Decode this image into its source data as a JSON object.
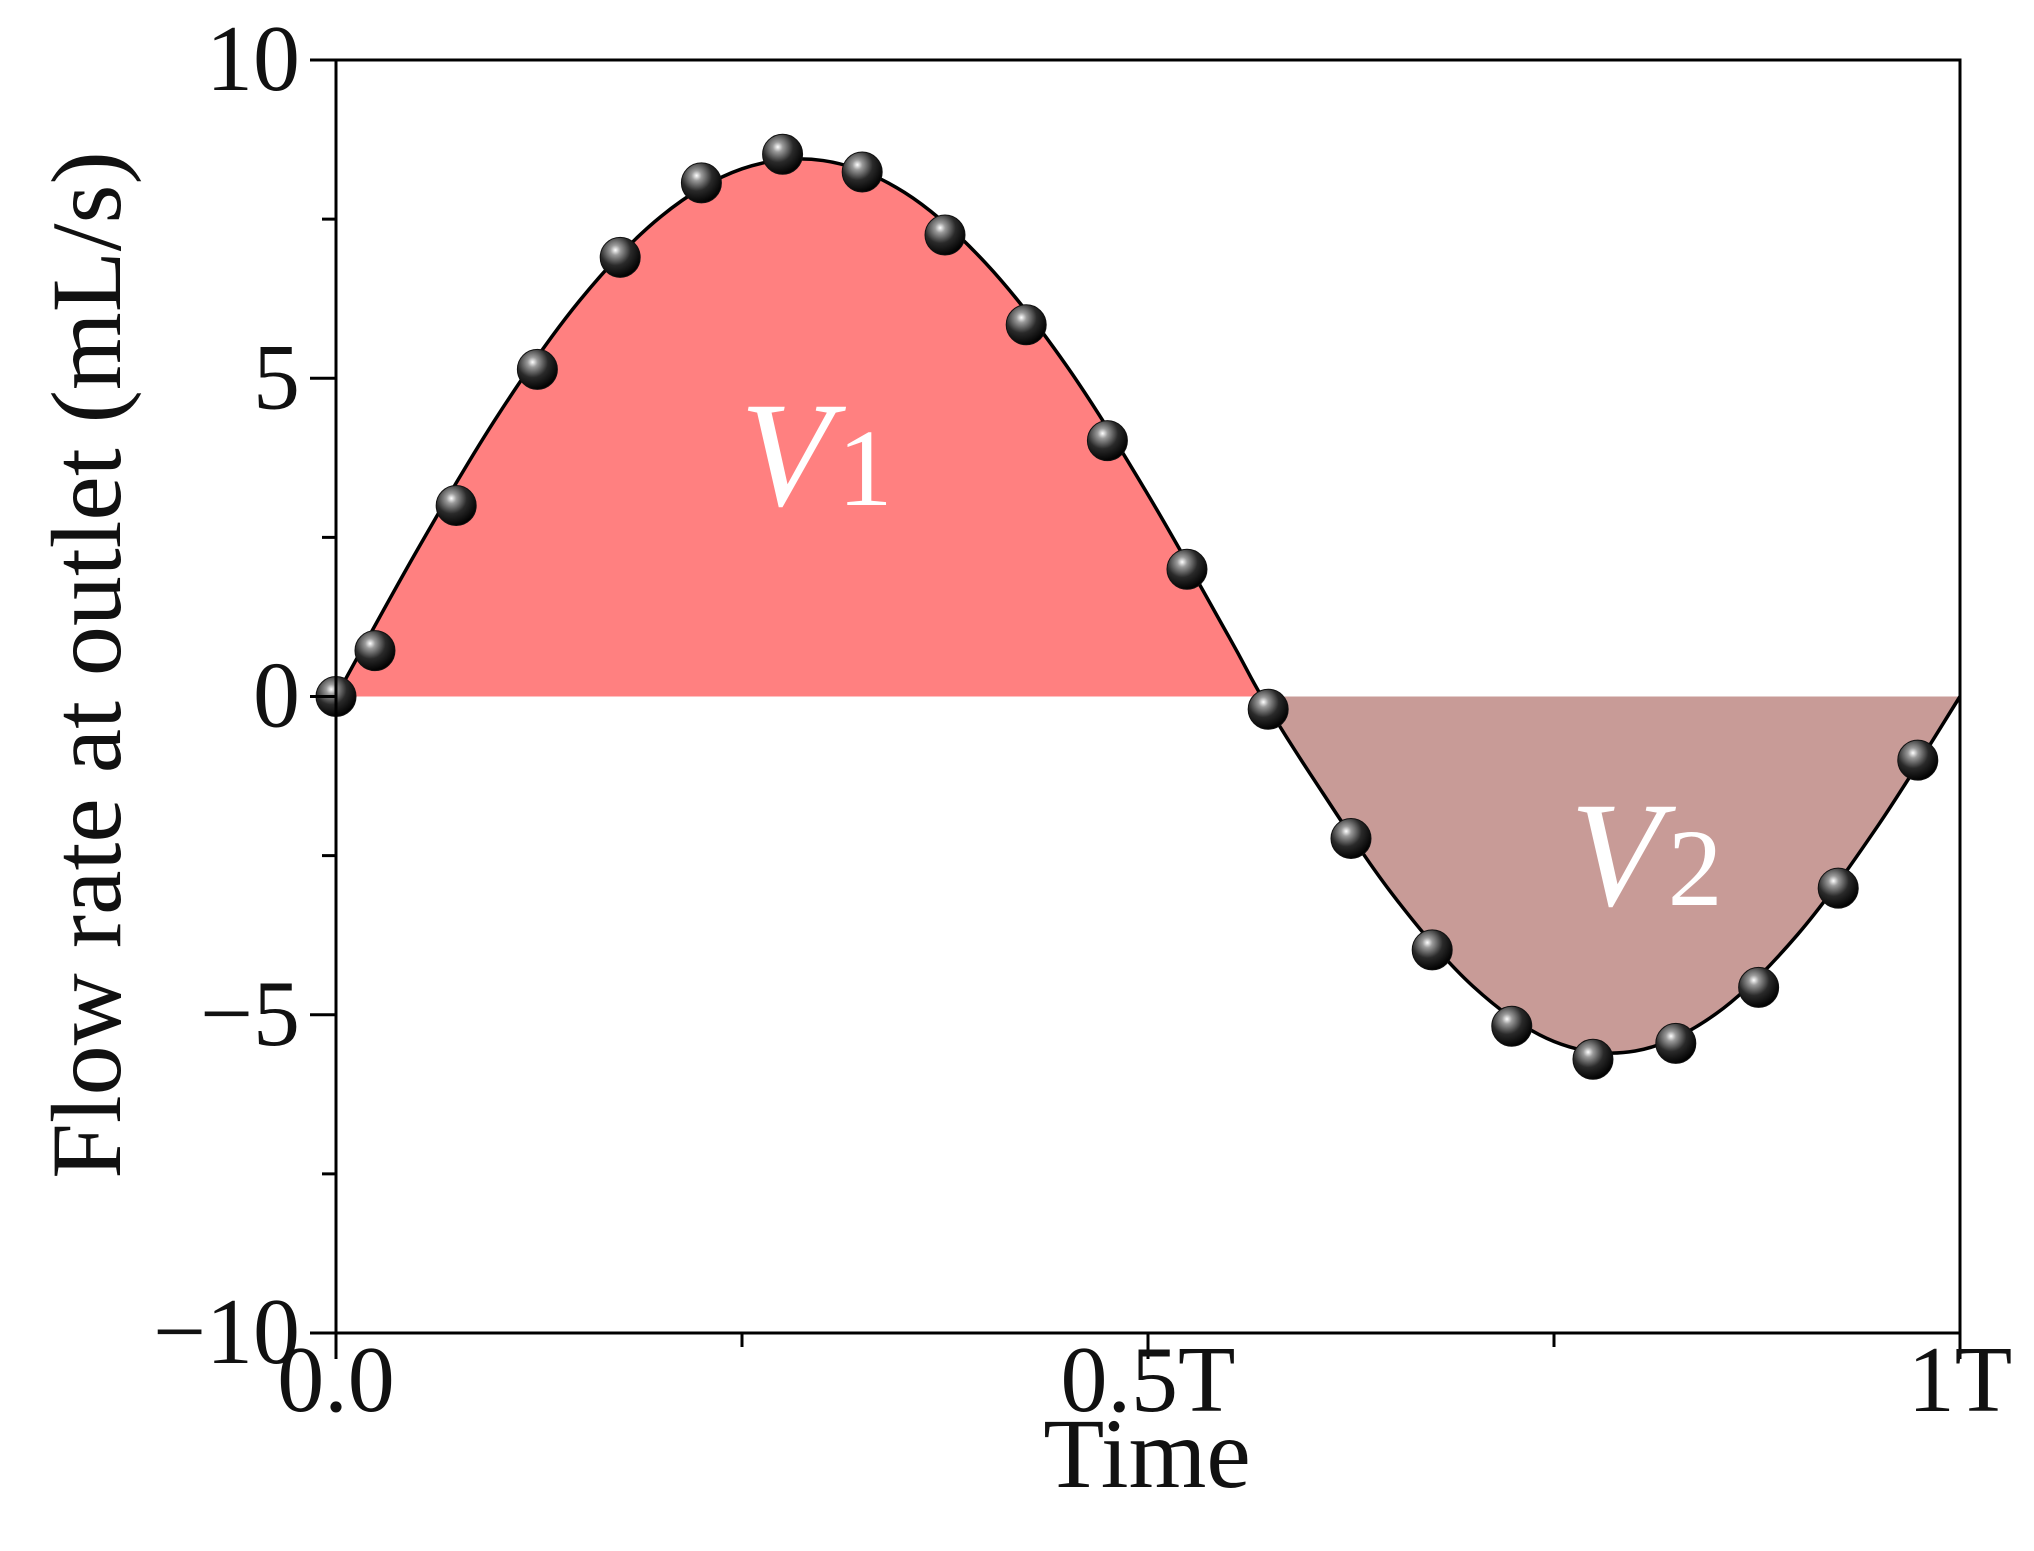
{
  "chart_data": {
    "type": "line",
    "xlabel": "Time",
    "ylabel": "Flow rate at outlet (mL/s)",
    "xlim": [
      0,
      1
    ],
    "ylim": [
      -10,
      10
    ],
    "xticks": [
      {
        "value": 0,
        "label": "0.0"
      },
      {
        "value": 0.5,
        "label": "0.5T"
      },
      {
        "value": 1,
        "label": "1T"
      }
    ],
    "xminorticks": [
      0.25,
      0.75
    ],
    "yticks": [
      10,
      5,
      0,
      {
        "value": -5,
        "label": "−5"
      },
      {
        "value": -10,
        "label": "−10"
      }
    ],
    "yminorticks": [
      7.5,
      2.5,
      -2.5,
      -7.5
    ],
    "points": {
      "color": "#111111",
      "x": [
        0,
        0.024,
        0.074,
        0.124,
        0.175,
        0.225,
        0.275,
        0.324,
        0.375,
        0.425,
        0.475,
        0.524,
        0.574,
        0.625,
        0.675,
        0.724,
        0.774,
        0.825,
        0.876,
        0.925,
        0.974
      ],
      "values": [
        0,
        0.72,
        3.0,
        5.14,
        6.9,
        8.07,
        8.52,
        8.24,
        7.25,
        5.84,
        4.02,
        2.0,
        -0.2,
        -2.23,
        -3.98,
        -5.18,
        -5.7,
        -5.45,
        -4.57,
        -3.01,
        -1.0
      ]
    },
    "curve": {
      "color": "#000000",
      "x": [
        0,
        0.05,
        0.1,
        0.15,
        0.2,
        0.25,
        0.3,
        0.35,
        0.4,
        0.45,
        0.5,
        0.55,
        0.57,
        0.6,
        0.65,
        0.7,
        0.75,
        0.8,
        0.85,
        0.9,
        0.95,
        1
      ],
      "values": [
        0,
        2.3,
        4.43,
        6.22,
        7.54,
        8.29,
        8.42,
        7.92,
        6.81,
        5.19,
        3.17,
        0.93,
        0,
        -1.22,
        -3.09,
        -4.55,
        -5.42,
        -5.57,
        -4.98,
        -3.74,
        -2.01,
        0
      ]
    },
    "area_colors": {
      "positive": "#ff8080",
      "negative": "#c89b97"
    },
    "annotations": [
      {
        "text": "V",
        "subscript": "1"
      },
      {
        "text": "V",
        "subscript": "2"
      }
    ]
  }
}
